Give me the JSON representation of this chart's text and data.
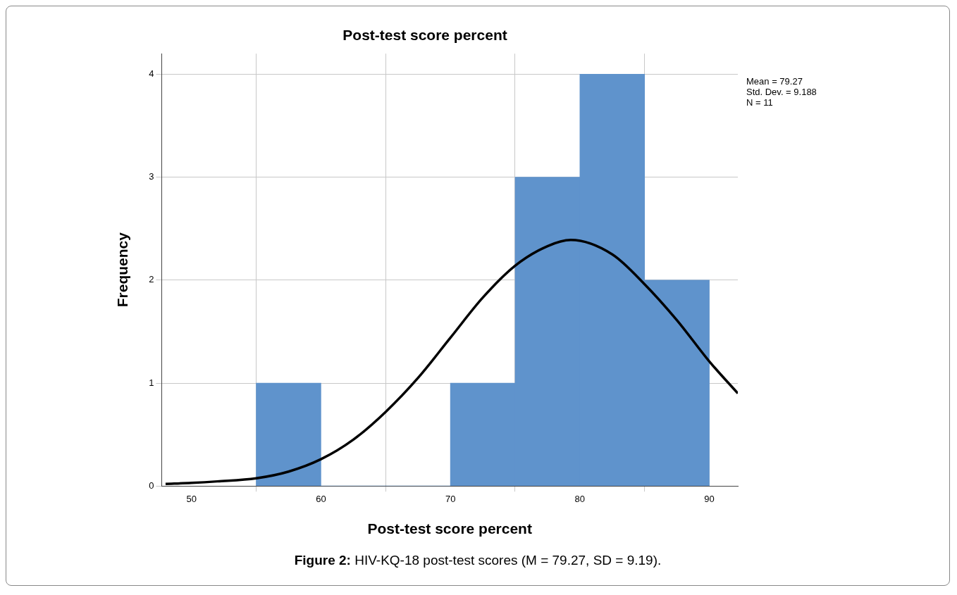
{
  "chart_data": {
    "type": "histogram",
    "title": "Post-test score percent",
    "xlabel": "Post-test score percent",
    "ylabel": "Frequency",
    "bins": [
      55,
      60,
      65,
      70,
      75,
      80,
      85,
      90
    ],
    "values": [
      1,
      0,
      0,
      1,
      3,
      4,
      2
    ],
    "color": "#5f93cc",
    "series": [
      {
        "type": "line",
        "color": "#000000",
        "x": [
          48,
          50,
          52,
          55,
          57.5,
          60,
          62.5,
          65,
          67.5,
          70,
          72.5,
          75,
          77.5,
          79.3,
          82.5,
          85,
          87.5,
          90,
          92.2
        ],
        "values": [
          0.02,
          0.03,
          0.045,
          0.075,
          0.14,
          0.26,
          0.45,
          0.72,
          1.05,
          1.44,
          1.83,
          2.14,
          2.33,
          2.39,
          2.25,
          1.96,
          1.61,
          1.21,
          0.9
        ]
      }
    ],
    "xlim": [
      47.7,
      92.2
    ],
    "ylim": [
      0,
      4.2
    ],
    "xticks": [
      50,
      60,
      70,
      80,
      90
    ],
    "yticks": [
      0,
      1,
      2,
      3,
      4
    ],
    "grid": true,
    "legend": false,
    "marker": "none",
    "line_style": "solid",
    "annotations": [
      "Mean = 79.27",
      "Std. Dev. = 9.188",
      "N = 11",
      "Figure 2: HIV-KQ-18 post-test scores (M = 79.27, SD = 9.19)."
    ]
  }
}
